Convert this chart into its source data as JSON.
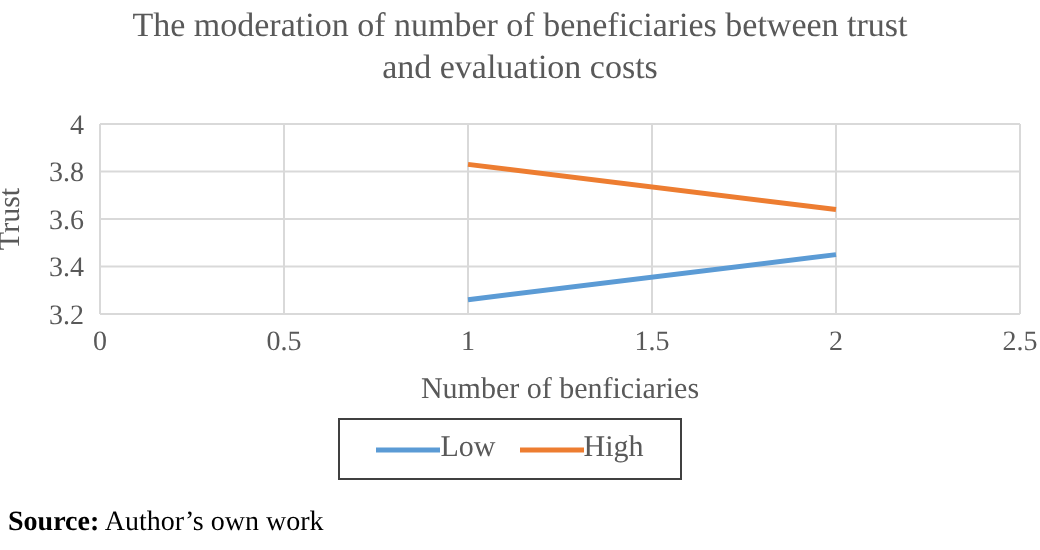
{
  "chart_data": {
    "type": "line",
    "title": "The moderation of number of beneficiaries between trust and evaluation costs",
    "xlabel": "Number of benficiaries",
    "ylabel": "Trust",
    "x": [
      1,
      2
    ],
    "series": [
      {
        "name": "Low",
        "color": "#5b9bd5",
        "values": [
          3.26,
          3.45
        ]
      },
      {
        "name": "High",
        "color": "#ed7d31",
        "values": [
          3.83,
          3.64
        ]
      }
    ],
    "xlim": [
      0,
      2.5
    ],
    "xticks": [
      0,
      0.5,
      1,
      1.5,
      2,
      2.5
    ],
    "ylim": [
      3.2,
      4
    ],
    "yticks": [
      3.2,
      3.4,
      3.6,
      3.8,
      4
    ],
    "grid": true,
    "legend": "bottom",
    "annotations": [
      "Source: Author’s own work"
    ]
  }
}
